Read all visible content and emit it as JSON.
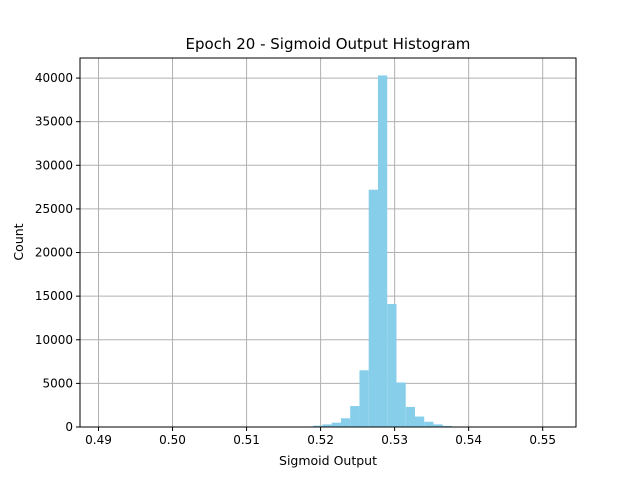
{
  "chart_data": {
    "type": "bar",
    "title": "Epoch 20 - Sigmoid Output Histogram",
    "xlabel": "Sigmoid Output",
    "ylabel": "Count",
    "xlim": [
      0.4875,
      0.5545
    ],
    "ylim": [
      0,
      42300
    ],
    "xticks": [
      0.49,
      0.5,
      0.51,
      0.52,
      0.53,
      0.54,
      0.55
    ],
    "xtick_labels": [
      "0.49",
      "0.50",
      "0.51",
      "0.52",
      "0.53",
      "0.54",
      "0.55"
    ],
    "yticks": [
      0,
      5000,
      10000,
      15000,
      20000,
      25000,
      30000,
      35000,
      40000
    ],
    "ytick_labels": [
      "0",
      "5000",
      "10000",
      "15000",
      "20000",
      "25000",
      "30000",
      "35000",
      "40000"
    ],
    "grid": true,
    "bar_color": "#87CEEB",
    "bin_width": 0.00125,
    "bins": [
      {
        "x0": 0.5165,
        "count": 30
      },
      {
        "x0": 0.51775,
        "count": 60
      },
      {
        "x0": 0.519,
        "count": 150
      },
      {
        "x0": 0.52025,
        "count": 300
      },
      {
        "x0": 0.5215,
        "count": 500
      },
      {
        "x0": 0.52275,
        "count": 1000
      },
      {
        "x0": 0.524,
        "count": 2400
      },
      {
        "x0": 0.52525,
        "count": 6500
      },
      {
        "x0": 0.5265,
        "count": 27200
      },
      {
        "x0": 0.52775,
        "count": 40300
      },
      {
        "x0": 0.529,
        "count": 14100
      },
      {
        "x0": 0.53025,
        "count": 5100
      },
      {
        "x0": 0.5315,
        "count": 2300
      },
      {
        "x0": 0.53275,
        "count": 1200
      },
      {
        "x0": 0.534,
        "count": 600
      },
      {
        "x0": 0.53525,
        "count": 300
      },
      {
        "x0": 0.5365,
        "count": 120
      },
      {
        "x0": 0.53775,
        "count": 50
      }
    ]
  }
}
